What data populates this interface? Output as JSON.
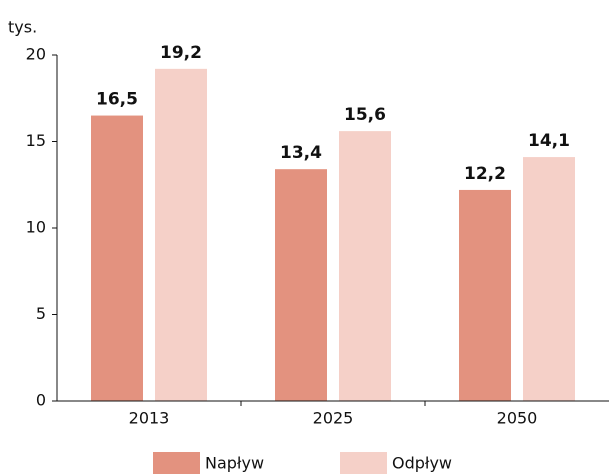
{
  "chart_data": {
    "type": "bar",
    "y_label": "tys.",
    "categories": [
      "2013",
      "2025",
      "2050"
    ],
    "series": [
      {
        "name": "Napływ",
        "color": "#e3927f",
        "values": [
          16.5,
          13.4,
          12.2
        ],
        "value_labels": [
          "16,5",
          "13,4",
          "12,2"
        ]
      },
      {
        "name": "Odpływ",
        "color": "#f5d0c8",
        "values": [
          19.2,
          15.6,
          14.1
        ],
        "value_labels": [
          "19,2",
          "15,6",
          "14,1"
        ]
      }
    ],
    "ylim": [
      0,
      20
    ],
    "yticks": [
      0,
      5,
      10,
      15,
      20
    ],
    "grid": false,
    "legend": "bottom"
  }
}
